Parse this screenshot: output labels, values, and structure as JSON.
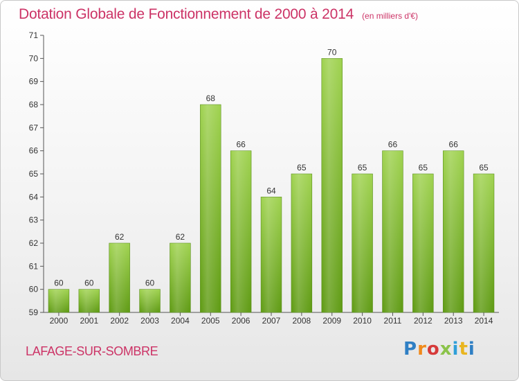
{
  "header": {
    "title": "Dotation Globale de Fonctionnement de 2000 à 2014",
    "unit": "(en milliers d'€)"
  },
  "footer": {
    "commune": "LAFAGE-SUR-SOMBRE",
    "brand": [
      "P",
      "r",
      "o",
      "x",
      "i",
      "t",
      "i"
    ]
  },
  "chart_data": {
    "type": "bar",
    "categories": [
      "2000",
      "2001",
      "2002",
      "2003",
      "2004",
      "2005",
      "2006",
      "2007",
      "2008",
      "2009",
      "2010",
      "2011",
      "2012",
      "2013",
      "2014"
    ],
    "values": [
      60,
      60,
      62,
      60,
      62,
      68,
      66,
      64,
      65,
      70,
      65,
      66,
      65,
      66,
      65
    ],
    "data_labels": [
      "60",
      "60",
      "62",
      "60",
      "62",
      "68",
      "66",
      "64",
      "65",
      "70",
      "65",
      "66",
      "65",
      "66",
      "65"
    ],
    "y_ticks": [
      "59",
      "60",
      "61",
      "62",
      "63",
      "64",
      "65",
      "66",
      "67",
      "68",
      "69",
      "70",
      "71"
    ],
    "ylim": [
      59,
      71
    ],
    "grid": false,
    "bar_color": "#7cbd2f"
  }
}
